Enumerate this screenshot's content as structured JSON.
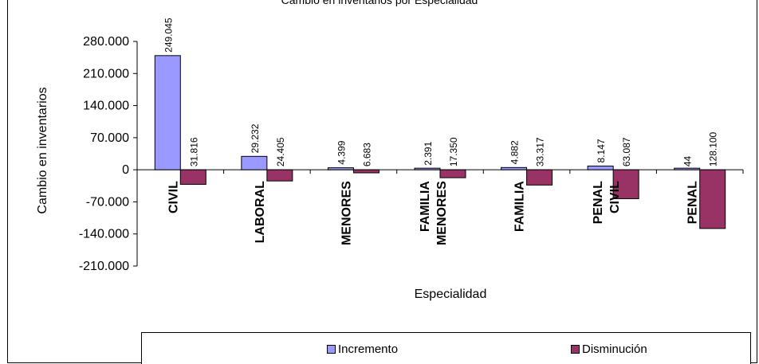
{
  "chart_data": {
    "type": "bar",
    "title": "Cambio en inventarios por Especialidad",
    "xlabel": "Especialidad",
    "ylabel": "Cambio en inventarios",
    "ylim": [
      -210000,
      280000
    ],
    "yticks": [
      280000,
      210000,
      140000,
      70000,
      0,
      -70000,
      -140000,
      -210000
    ],
    "ytick_labels": [
      "280.000",
      "210.000",
      "140.000",
      "70.000",
      "0",
      "-70.000",
      "-140.000",
      "-210.000"
    ],
    "categories": [
      {
        "lines": [
          "CIVIL"
        ]
      },
      {
        "lines": [
          "LABORAL"
        ]
      },
      {
        "lines": [
          "MENORES"
        ]
      },
      {
        "lines": [
          "FAMILIA",
          "MENORES"
        ]
      },
      {
        "lines": [
          "FAMILIA"
        ]
      },
      {
        "lines": [
          "PENAL",
          "CIVIL"
        ]
      },
      {
        "lines": [
          "PENAL"
        ]
      }
    ],
    "series": [
      {
        "name": "Incremento",
        "color": "#9999ff",
        "values": [
          249045,
          29232,
          4399,
          2391,
          4882,
          8147,
          44
        ],
        "labels": [
          "249.045",
          "29.232",
          "4.399",
          "2.391",
          "4.882",
          "8.147",
          "44"
        ]
      },
      {
        "name": "Disminución",
        "color": "#993366",
        "values": [
          -31816,
          -24405,
          -6683,
          -17350,
          -33317,
          -63087,
          -128100
        ],
        "labels": [
          "31.816",
          "24.405",
          "6.683",
          "17.350",
          "33.317",
          "63.087",
          "128.100"
        ]
      }
    ],
    "grid": false,
    "legend_position": "bottom"
  }
}
